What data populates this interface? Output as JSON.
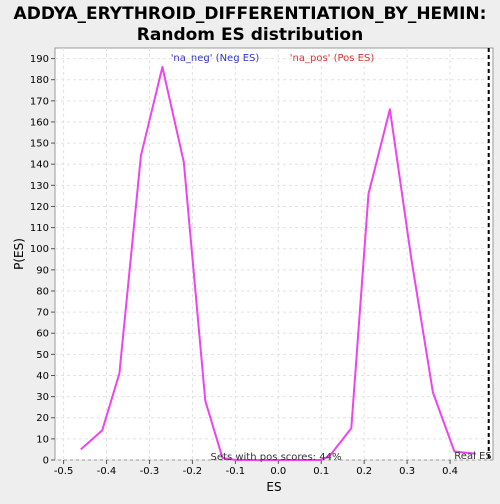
{
  "chart_data": {
    "type": "line",
    "title_line1": "ADDYA_ERYTHROID_DIFFERENTIATION_BY_HEMIN:",
    "title_line2": "Random ES distribution",
    "xlabel": "ES",
    "ylabel": "P(ES)",
    "xlim": [
      -0.52,
      0.5
    ],
    "ylim": [
      0,
      195
    ],
    "x_ticks": [
      -0.5,
      -0.4,
      -0.3,
      -0.2,
      -0.1,
      0,
      0.1,
      0.2,
      0.3,
      0.4
    ],
    "x_tick_labels": [
      "-0.5",
      "-0.4",
      "-0.3",
      "-0.2",
      "-0.1",
      "0.0",
      "0.1",
      "0.2",
      "0.3",
      "0.4"
    ],
    "y_ticks": [
      0,
      10,
      20,
      30,
      40,
      50,
      60,
      70,
      80,
      90,
      100,
      110,
      120,
      130,
      140,
      150,
      160,
      170,
      180,
      190
    ],
    "grid": true,
    "legend": [
      {
        "label": "'na_neg' (Neg ES)",
        "color": "#3333cc"
      },
      {
        "label": "'na_pos' (Pos ES)",
        "color": "#dd3333"
      }
    ],
    "series": [
      {
        "color": "#ee44ee",
        "x": [
          -0.46,
          -0.41,
          -0.37,
          -0.32,
          -0.27,
          -0.22,
          -0.17,
          -0.13,
          -0.1,
          0.0,
          0.1,
          0.12,
          0.17,
          0.21,
          0.26,
          0.31,
          0.36,
          0.41,
          0.46
        ],
        "y": [
          5,
          14,
          41,
          144,
          186,
          141,
          28,
          1,
          0,
          0,
          0,
          2,
          15,
          126,
          166,
          95,
          32,
          4,
          3
        ]
      }
    ],
    "real_es": {
      "x": 0.49,
      "label": "Real ES"
    },
    "annotation": "Sets with pos scores: 44%"
  }
}
